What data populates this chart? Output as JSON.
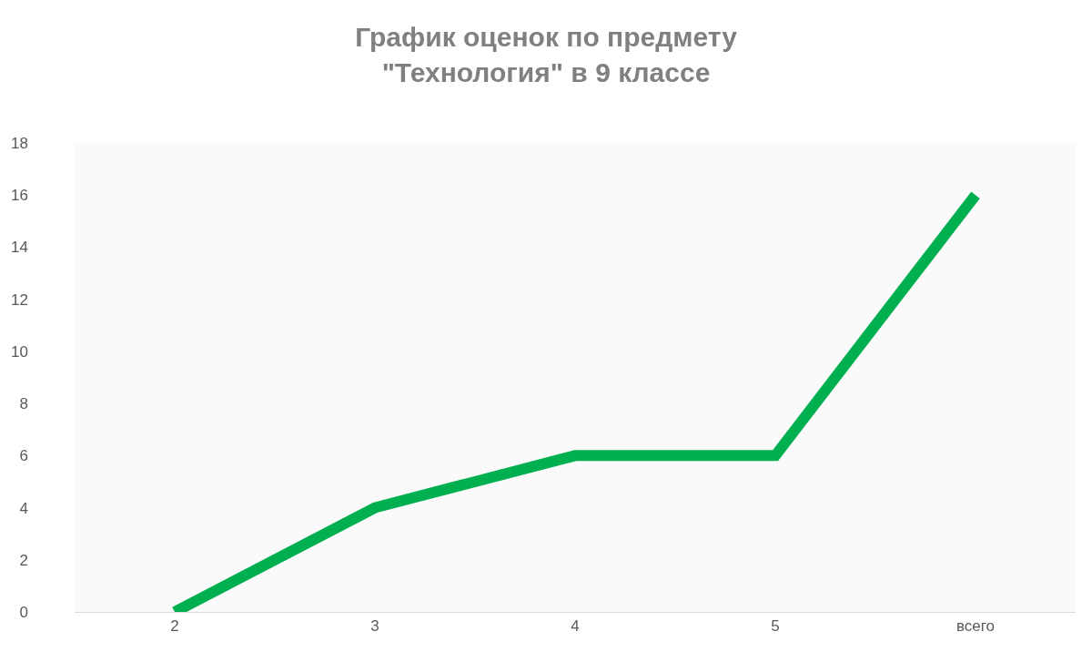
{
  "chart_data": {
    "type": "line",
    "title": "График оценок по предмету\n\"Технология\" в 9 классе",
    "categories": [
      "2",
      "3",
      "4",
      "5",
      "всего"
    ],
    "series": [
      {
        "color": "#00b050",
        "values": [
          0,
          4,
          6,
          6,
          16
        ]
      }
    ],
    "ylim": [
      0,
      18
    ],
    "yticks": [
      0,
      2,
      4,
      6,
      8,
      10,
      12,
      14,
      16,
      18
    ],
    "grid": false,
    "marker": "none",
    "line_style": "solid"
  }
}
